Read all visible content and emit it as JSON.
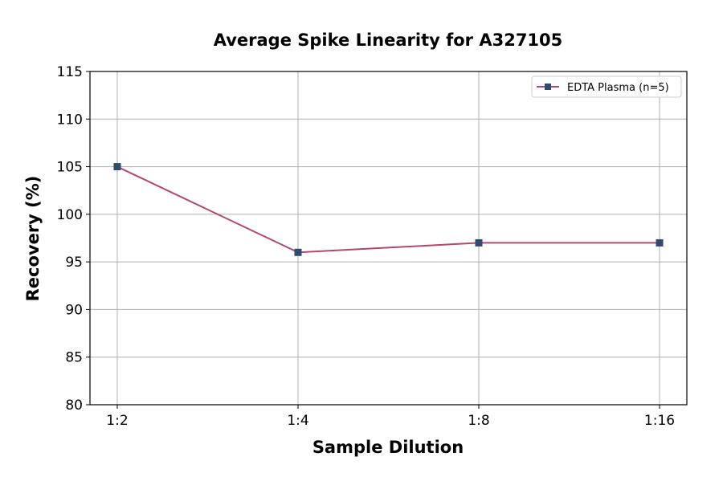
{
  "chart_data": {
    "type": "line",
    "title": "Average Spike Linearity for A327105",
    "xlabel": "Sample Dilution",
    "ylabel": "Recovery (%)",
    "categories": [
      "1:2",
      "1:4",
      "1:8",
      "1:16"
    ],
    "ylim": [
      80,
      115
    ],
    "yticks": [
      80,
      85,
      90,
      95,
      100,
      105,
      110,
      115
    ],
    "grid": true,
    "legend": "top-right",
    "series": [
      {
        "name": "EDTA Plasma (n=5)",
        "values": [
          105,
          96,
          97,
          97
        ],
        "line_color": "#b5466e",
        "marker": "square",
        "marker_color": "#2f4b6e"
      }
    ]
  }
}
